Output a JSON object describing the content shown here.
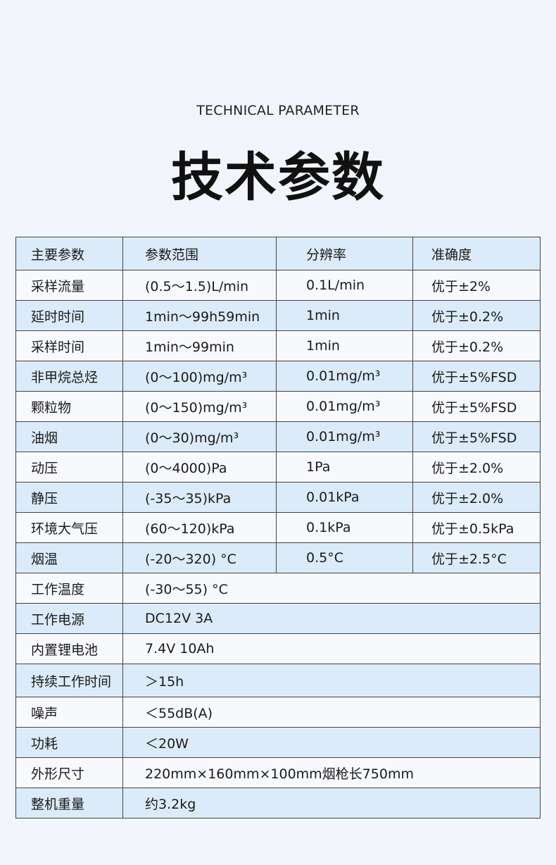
{
  "header": {
    "subtitle": "TECHNICAL PARAMETER",
    "title": "技术参数"
  },
  "table": {
    "columns": [
      "主要参数",
      "参数范围",
      "分辨率",
      "准确度"
    ],
    "rows": [
      [
        "采样流量",
        "(0.5～1.5)L/min",
        "0.1L/min",
        "优于±2%"
      ],
      [
        "延时时间",
        "1min～99h59min",
        "1min",
        "优于±0.2%"
      ],
      [
        "采样时间",
        "1min～99min",
        "1min",
        "优于±0.2%"
      ],
      [
        "非甲烷总烃",
        "(0～100)mg/m³",
        "0.01mg/m³",
        "优于±5%FSD"
      ],
      [
        "颗粒物",
        "(0～150)mg/m³",
        "0.01mg/m³",
        "优于±5%FSD"
      ],
      [
        "油烟",
        "(0～30)mg/m³",
        "0.01mg/m³",
        "优于±5%FSD"
      ],
      [
        "动压",
        "(0～4000)Pa",
        "1Pa",
        "优于±2.0%"
      ],
      [
        "静压",
        "(-35～35)kPa",
        "0.01kPa",
        "优于±2.0%"
      ],
      [
        "环境大气压",
        "(60～120)kPa",
        "0.1kPa",
        "优于±0.5kPa"
      ],
      [
        "烟温",
        "(-20～320) °C",
        "0.5°C",
        "优于±2.5°C"
      ]
    ],
    "spec_rows": [
      [
        "工作温度",
        "(-30～55) °C"
      ],
      [
        "工作电源",
        "DC12V 3A"
      ],
      [
        "内置锂电池",
        "7.4V 10Ah"
      ],
      [
        "持续工作时间",
        "＞15h"
      ],
      [
        "噪声",
        "＜55dB(A)"
      ],
      [
        "功耗",
        "＜20W"
      ],
      [
        "外形尺寸",
        "220mm×160mm×100mm烟枪长750mm"
      ],
      [
        "整机重量",
        "约3.2kg"
      ]
    ]
  },
  "colors": {
    "row_blue": "#dcebf9",
    "row_light": "#f7f9fc",
    "border": "#444444",
    "background": "#f2f6fc"
  }
}
